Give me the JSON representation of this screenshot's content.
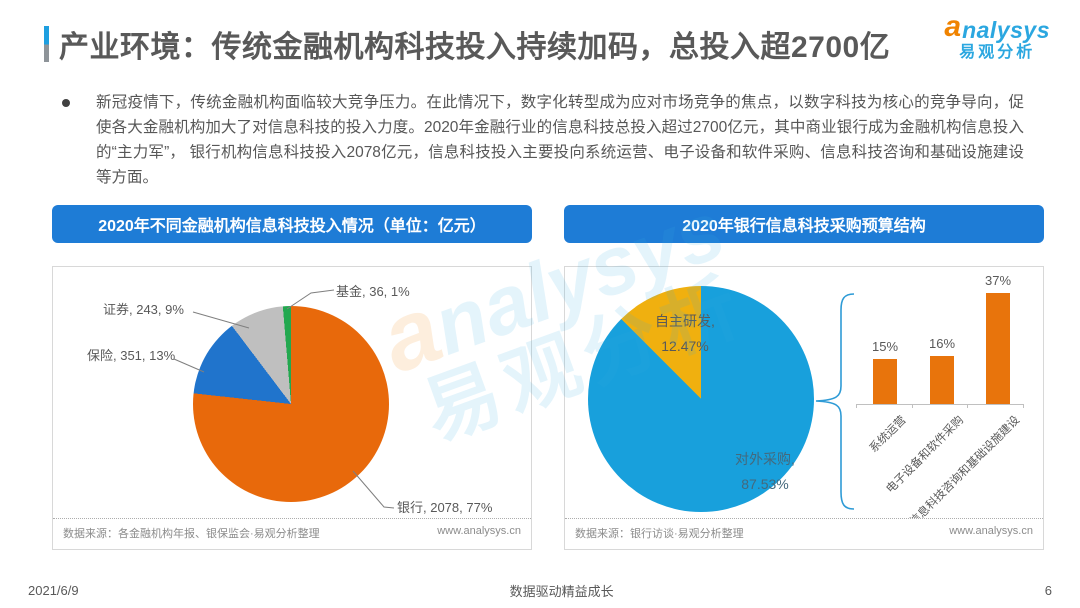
{
  "header": {
    "title": "产业环境：传统金融机构科技投入持续加码，总投入超2700亿",
    "logo": {
      "a": "a",
      "rest": "nalysys",
      "cn": "易观分析"
    }
  },
  "summary": {
    "text": "新冠疫情下，传统金融机构面临较大竞争压力。在此情况下，数字化转型成为应对市场竞争的焦点，以数字科技为核心的竞争导向，促使各大金融机构加大了对信息科技的投入力度。2020年金融行业的信息科技总投入超过2700亿元，其中商业银行成为金融机构信息投入的“主力军”， 银行机构信息科技投入2078亿元，信息科技投入主要投向系统运营、电子设备和软件采购、信息科技咨询和基础设施建设等方面。"
  },
  "left_panel": {
    "header": "2020年不同金融机构信息科技投入情况（单位：亿元）",
    "labels": {
      "fund": "基金, 36, 1%",
      "securities": "证券, 243, 9%",
      "insurance": "保险, 351, 13%",
      "bank": "银行, 2078, 77%"
    },
    "source": "数据来源：各金融机构年报、银保监会·易观分析整理",
    "site": "www.analysys.cn"
  },
  "right_panel": {
    "header": "2020年银行信息科技采购预算结构",
    "pie_labels": {
      "inhouse_name": "自主研发,",
      "inhouse_value": "12.47%",
      "external_name": "对外采购,",
      "external_value": "87.53%"
    },
    "bars": [
      {
        "value": "15%",
        "category": "系统运营"
      },
      {
        "value": "16%",
        "category": "电子设备和软件采购"
      },
      {
        "value": "37%",
        "category": "信息科技咨询和基础设施建设"
      }
    ],
    "source": "数据来源：银行访谈·易观分析整理",
    "site": "www.analysys.cn"
  },
  "footer": {
    "date": "2021/6/9",
    "slogan": "数据驱动精益成长",
    "page": "6"
  },
  "watermark": {
    "logo_a": "a",
    "logo_rest": "nalysys",
    "cn": "易观分析"
  },
  "colors": {
    "band_blue": "#1E7CD6",
    "title_gray": "#595959",
    "pie1_colors": [
      "#E8690B",
      "#2074CC",
      "#BFBFBF",
      "#22A84F"
    ],
    "pie2_colors": [
      "#18A0DC",
      "#F0B00F"
    ],
    "bar_orange": "#E8740C",
    "brace_blue": "#2E9BD6"
  },
  "chart_data": [
    {
      "type": "pie",
      "title": "2020年不同金融机构信息科技投入情况（单位：亿元）",
      "labels": [
        "银行",
        "保险",
        "证券",
        "基金"
      ],
      "values": [
        2078,
        351,
        243,
        36
      ],
      "percent_labels": [
        "77%",
        "13%",
        "9%",
        "1%"
      ],
      "colors": [
        "#E8690B",
        "#2074CC",
        "#BFBFBF",
        "#22A84F"
      ],
      "start_angle_deg": 0,
      "direction": "clockwise",
      "source": "数据来源：各金融机构年报、银保监会·易观分析整理"
    },
    {
      "type": "pie",
      "title": "2020年银行信息科技采购预算结构",
      "labels": [
        "对外采购",
        "自主研发"
      ],
      "values": [
        87.53,
        12.47
      ],
      "percent_labels": [
        "87.53%",
        "12.47%"
      ],
      "colors": [
        "#18A0DC",
        "#F0B00F"
      ],
      "start_angle_deg": 0,
      "direction": "clockwise",
      "source": "数据来源：银行访谈·易观分析整理"
    },
    {
      "type": "bar",
      "categories": [
        "系统运营",
        "电子设备和软件采购",
        "信息科技咨询和基础设施建设"
      ],
      "values": [
        15,
        16,
        37
      ],
      "unit": "%",
      "color": "#E8740C",
      "ylim": [
        0,
        40
      ],
      "grid": false,
      "legend": false
    }
  ]
}
